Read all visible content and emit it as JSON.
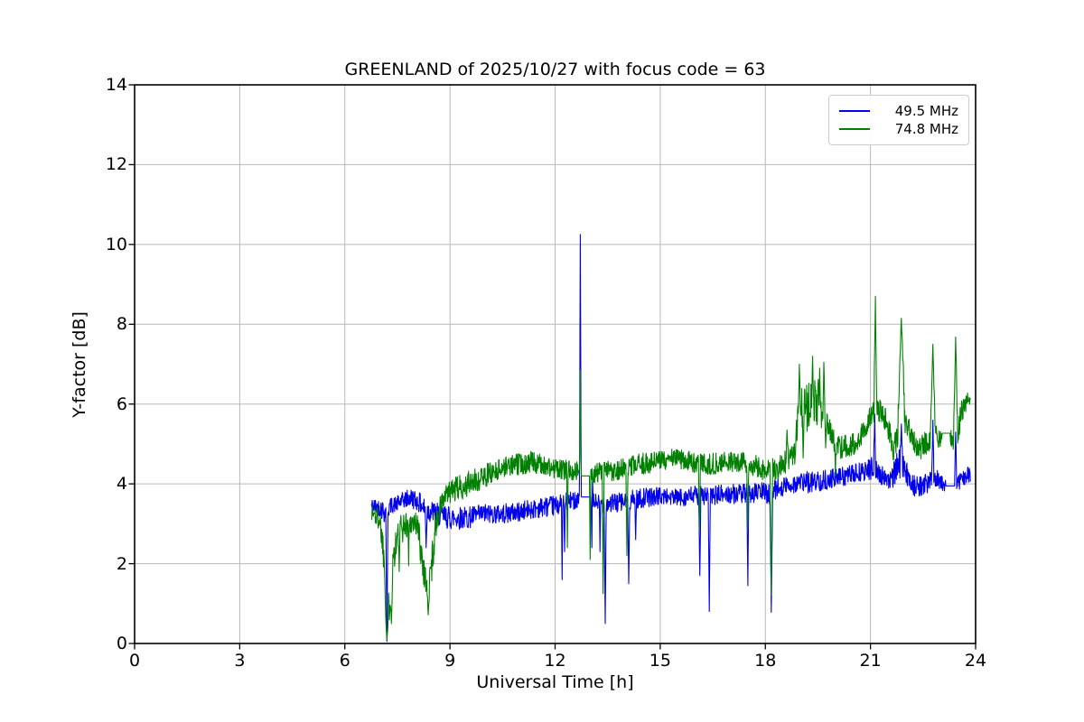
{
  "chart_data": {
    "type": "line",
    "title": "GREENLAND of 2025/10/27 with focus code = 63",
    "xlabel": "Universal Time [h]",
    "ylabel": "Y-factor [dB]",
    "xlim": [
      0,
      24
    ],
    "ylim": [
      0,
      14
    ],
    "xticks": [
      0,
      3,
      6,
      9,
      12,
      15,
      18,
      21,
      24
    ],
    "yticks": [
      0,
      2,
      4,
      6,
      8,
      10,
      12,
      14
    ],
    "grid": true,
    "grid_color": "#b8b8b8",
    "frame_color": "#000000",
    "legend": {
      "position": "upper right",
      "entries": [
        "49.5 MHz",
        "74.8 MHz"
      ]
    },
    "series": [
      {
        "name": "49.5 MHz",
        "color": "#0000ee",
        "seed": 42,
        "x_start": 6.76,
        "x_end": 23.85,
        "baseline": [
          [
            6.76,
            3.45,
            0.2
          ],
          [
            7.0,
            3.4,
            0.22
          ],
          [
            7.15,
            3.3,
            0.3
          ],
          [
            7.3,
            3.45,
            0.2
          ],
          [
            7.5,
            3.5,
            0.2
          ],
          [
            7.7,
            3.6,
            0.22
          ],
          [
            7.9,
            3.65,
            0.25
          ],
          [
            8.1,
            3.55,
            0.25
          ],
          [
            8.3,
            3.35,
            0.3
          ],
          [
            8.5,
            3.3,
            0.28
          ],
          [
            8.75,
            3.2,
            0.28
          ],
          [
            9.0,
            3.15,
            0.3
          ],
          [
            9.5,
            3.15,
            0.28
          ],
          [
            10.0,
            3.25,
            0.25
          ],
          [
            10.5,
            3.25,
            0.25
          ],
          [
            11.0,
            3.3,
            0.25
          ],
          [
            11.5,
            3.4,
            0.25
          ],
          [
            12.0,
            3.45,
            0.25
          ],
          [
            12.4,
            3.55,
            0.25
          ],
          [
            12.72,
            3.65,
            0.2
          ],
          [
            13.1,
            3.55,
            0.22
          ],
          [
            13.5,
            3.5,
            0.25
          ],
          [
            14.0,
            3.55,
            0.25
          ],
          [
            14.5,
            3.65,
            0.25
          ],
          [
            15.0,
            3.7,
            0.22
          ],
          [
            15.5,
            3.65,
            0.22
          ],
          [
            16.0,
            3.7,
            0.25
          ],
          [
            16.5,
            3.7,
            0.25
          ],
          [
            17.0,
            3.75,
            0.25
          ],
          [
            17.5,
            3.75,
            0.25
          ],
          [
            17.9,
            3.8,
            0.25
          ],
          [
            18.15,
            3.75,
            0.3
          ],
          [
            18.35,
            3.9,
            0.25
          ],
          [
            18.8,
            4.0,
            0.25
          ],
          [
            19.3,
            4.05,
            0.28
          ],
          [
            19.8,
            4.1,
            0.25
          ],
          [
            20.3,
            4.2,
            0.25
          ],
          [
            20.8,
            4.3,
            0.25
          ],
          [
            21.05,
            4.4,
            0.3
          ],
          [
            21.3,
            4.2,
            0.25
          ],
          [
            21.6,
            4.1,
            0.25
          ],
          [
            21.8,
            4.55,
            0.4
          ],
          [
            22.0,
            4.3,
            0.3
          ],
          [
            22.3,
            3.9,
            0.28
          ],
          [
            22.6,
            4.0,
            0.25
          ],
          [
            22.85,
            4.2,
            0.3
          ],
          [
            23.1,
            4.0,
            0.2
          ],
          [
            23.45,
            4.0,
            0.22
          ],
          [
            23.65,
            4.15,
            0.22
          ],
          [
            23.85,
            4.25,
            0.2
          ]
        ],
        "spikes_up": [
          [
            12.72,
            10.25,
            0.025
          ],
          [
            13.06,
            4.9,
            0.02
          ],
          [
            21.12,
            5.75,
            0.03
          ],
          [
            21.88,
            5.5,
            0.04
          ],
          [
            22.78,
            5.6,
            0.03
          ],
          [
            23.43,
            5.3,
            0.03
          ]
        ],
        "spikes_down": [
          [
            7.2,
            0.05,
            0.03
          ],
          [
            8.32,
            2.4,
            0.03
          ],
          [
            12.2,
            1.6,
            0.02
          ],
          [
            12.27,
            2.3,
            0.02
          ],
          [
            13.05,
            2.4,
            0.02
          ],
          [
            13.28,
            2.3,
            0.02
          ],
          [
            13.43,
            0.5,
            0.03
          ],
          [
            14.1,
            1.5,
            0.03
          ],
          [
            14.3,
            2.6,
            0.02
          ],
          [
            16.13,
            1.7,
            0.03
          ],
          [
            16.4,
            0.8,
            0.03
          ],
          [
            17.5,
            1.45,
            0.03
          ],
          [
            18.17,
            0.78,
            0.04
          ]
        ],
        "flats": [
          [
            12.74,
            13.02,
            3.67
          ],
          [
            23.15,
            23.42,
            3.95
          ]
        ]
      },
      {
        "name": "74.8 MHz",
        "color": "#008000",
        "seed": 1337,
        "x_start": 6.76,
        "x_end": 23.85,
        "baseline": [
          [
            6.76,
            3.3,
            0.3
          ],
          [
            7.0,
            3.1,
            0.3
          ],
          [
            7.12,
            2.2,
            0.5
          ],
          [
            7.2,
            0.5,
            0.3
          ],
          [
            7.28,
            1.1,
            0.5
          ],
          [
            7.4,
            2.3,
            0.5
          ],
          [
            7.55,
            2.8,
            0.4
          ],
          [
            7.7,
            2.95,
            0.35
          ],
          [
            7.9,
            3.05,
            0.3
          ],
          [
            8.05,
            3.0,
            0.35
          ],
          [
            8.15,
            2.5,
            0.5
          ],
          [
            8.28,
            1.7,
            0.4
          ],
          [
            8.38,
            1.35,
            0.3
          ],
          [
            8.48,
            2.0,
            0.5
          ],
          [
            8.6,
            3.0,
            0.35
          ],
          [
            8.75,
            3.5,
            0.3
          ],
          [
            9.0,
            3.8,
            0.3
          ],
          [
            9.4,
            3.95,
            0.33
          ],
          [
            9.8,
            4.1,
            0.3
          ],
          [
            10.2,
            4.3,
            0.28
          ],
          [
            10.6,
            4.45,
            0.25
          ],
          [
            11.0,
            4.5,
            0.28
          ],
          [
            11.3,
            4.55,
            0.28
          ],
          [
            11.7,
            4.45,
            0.25
          ],
          [
            12.1,
            4.35,
            0.27
          ],
          [
            12.5,
            4.35,
            0.25
          ],
          [
            12.9,
            4.25,
            0.25
          ],
          [
            13.3,
            4.3,
            0.27
          ],
          [
            13.7,
            4.35,
            0.27
          ],
          [
            14.1,
            4.4,
            0.27
          ],
          [
            14.5,
            4.5,
            0.28
          ],
          [
            14.9,
            4.55,
            0.27
          ],
          [
            15.3,
            4.65,
            0.25
          ],
          [
            15.7,
            4.6,
            0.25
          ],
          [
            16.1,
            4.5,
            0.27
          ],
          [
            16.5,
            4.5,
            0.27
          ],
          [
            16.9,
            4.55,
            0.25
          ],
          [
            17.3,
            4.55,
            0.25
          ],
          [
            17.7,
            4.45,
            0.27
          ],
          [
            18.0,
            4.35,
            0.3
          ],
          [
            18.25,
            4.35,
            0.3
          ],
          [
            18.5,
            4.5,
            0.3
          ],
          [
            18.75,
            4.6,
            0.35
          ],
          [
            18.85,
            4.9,
            0.4
          ],
          [
            19.0,
            6.0,
            0.55
          ],
          [
            19.2,
            5.9,
            0.6
          ],
          [
            19.4,
            6.1,
            0.6
          ],
          [
            19.6,
            6.0,
            0.6
          ],
          [
            19.75,
            5.6,
            0.5
          ],
          [
            19.9,
            5.1,
            0.3
          ],
          [
            20.2,
            4.9,
            0.3
          ],
          [
            20.5,
            5.0,
            0.3
          ],
          [
            20.8,
            5.3,
            0.3
          ],
          [
            21.0,
            5.7,
            0.35
          ],
          [
            21.14,
            6.0,
            0.4
          ],
          [
            21.3,
            5.85,
            0.3
          ],
          [
            21.45,
            5.6,
            0.3
          ],
          [
            21.65,
            4.9,
            0.3
          ],
          [
            21.78,
            5.3,
            0.45
          ],
          [
            21.88,
            5.9,
            0.5
          ],
          [
            22.0,
            5.6,
            0.4
          ],
          [
            22.15,
            5.3,
            0.3
          ],
          [
            22.35,
            4.85,
            0.3
          ],
          [
            22.6,
            5.05,
            0.3
          ],
          [
            22.8,
            5.2,
            0.3
          ],
          [
            23.0,
            5.15,
            0.25
          ],
          [
            23.3,
            5.1,
            0.25
          ],
          [
            23.38,
            5.0,
            0.3
          ],
          [
            23.5,
            5.3,
            0.35
          ],
          [
            23.6,
            5.8,
            0.3
          ],
          [
            23.75,
            6.05,
            0.25
          ],
          [
            23.85,
            6.1,
            0.2
          ]
        ],
        "spikes_up": [
          [
            12.72,
            6.85,
            0.025
          ],
          [
            18.62,
            5.35,
            0.03
          ],
          [
            18.97,
            7.0,
            0.03
          ],
          [
            19.35,
            7.2,
            0.03
          ],
          [
            19.55,
            6.9,
            0.03
          ],
          [
            19.67,
            7.05,
            0.03
          ],
          [
            21.14,
            8.7,
            0.04
          ],
          [
            21.88,
            8.15,
            0.1
          ],
          [
            22.78,
            7.5,
            0.07
          ],
          [
            23.43,
            7.68,
            0.06
          ]
        ],
        "spikes_down": [
          [
            7.2,
            0.1,
            0.05
          ],
          [
            7.33,
            0.5,
            0.03
          ],
          [
            7.55,
            1.8,
            0.02
          ],
          [
            7.82,
            1.95,
            0.02
          ],
          [
            8.38,
            0.72,
            0.04
          ],
          [
            12.35,
            2.4,
            0.02
          ],
          [
            13.0,
            2.1,
            0.02
          ],
          [
            13.37,
            1.25,
            0.03
          ],
          [
            14.05,
            2.2,
            0.03
          ],
          [
            16.12,
            2.85,
            0.03
          ],
          [
            17.5,
            2.9,
            0.03
          ],
          [
            18.17,
            1.2,
            0.04
          ],
          [
            19.08,
            4.65,
            0.03
          ],
          [
            19.72,
            4.9,
            0.03
          ],
          [
            20.0,
            4.2,
            0.02
          ],
          [
            21.65,
            4.6,
            0.02
          ]
        ],
        "flats": [
          [
            12.74,
            13.0,
            4.2
          ],
          [
            23.05,
            23.28,
            5.27
          ]
        ]
      }
    ]
  }
}
